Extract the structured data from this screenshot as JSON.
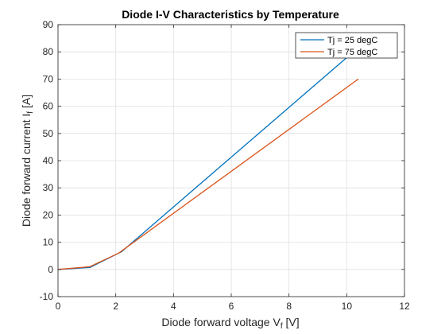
{
  "chart_data": {
    "type": "line",
    "title": "Diode I-V Characteristics by Temperature",
    "xlabel": {
      "prefix": "Diode  forward  voltage  V",
      "sub": "f",
      "suffix": "  [V]"
    },
    "ylabel": {
      "prefix": "Diode  forward  current  I",
      "sub": "f",
      "suffix": "  [A]"
    },
    "xlim": [
      0,
      12
    ],
    "ylim": [
      -10,
      90
    ],
    "xticks": [
      0,
      2,
      4,
      6,
      8,
      10,
      12
    ],
    "yticks": [
      -10,
      0,
      10,
      20,
      30,
      40,
      50,
      60,
      70,
      80,
      90
    ],
    "grid": true,
    "legend_position": "top-right",
    "series": [
      {
        "name": "Tj = 25 degC",
        "color": "#0072BD",
        "x": [
          0,
          1.1,
          2.2,
          10.1
        ],
        "y": [
          0,
          0.7,
          6.5,
          78.8
        ]
      },
      {
        "name": "Tj = 75 degC",
        "color": "#D95319",
        "x": [
          0,
          1.1,
          2.1,
          10.4
        ],
        "y": [
          0,
          1.0,
          6.0,
          70
        ]
      }
    ]
  }
}
